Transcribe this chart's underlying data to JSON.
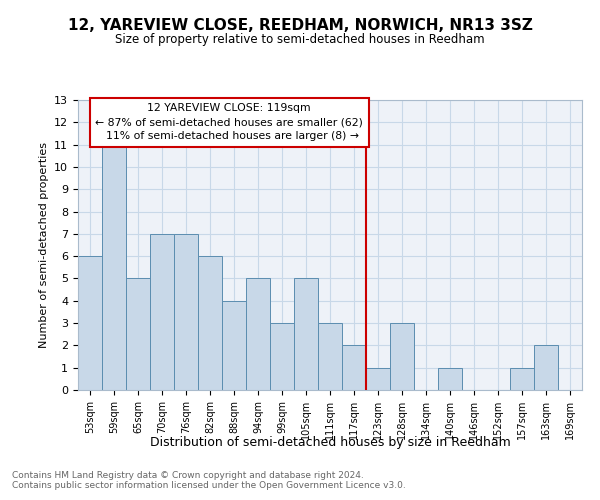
{
  "title": "12, YAREVIEW CLOSE, REEDHAM, NORWICH, NR13 3SZ",
  "subtitle": "Size of property relative to semi-detached houses in Reedham",
  "xlabel": "Distribution of semi-detached houses by size in Reedham",
  "ylabel": "Number of semi-detached properties",
  "categories": [
    "53sqm",
    "59sqm",
    "65sqm",
    "70sqm",
    "76sqm",
    "82sqm",
    "88sqm",
    "94sqm",
    "99sqm",
    "105sqm",
    "111sqm",
    "117sqm",
    "123sqm",
    "128sqm",
    "134sqm",
    "140sqm",
    "146sqm",
    "152sqm",
    "157sqm",
    "163sqm",
    "169sqm"
  ],
  "values": [
    6,
    11,
    5,
    7,
    7,
    6,
    4,
    5,
    3,
    5,
    3,
    2,
    1,
    3,
    0,
    1,
    0,
    0,
    1,
    2,
    0
  ],
  "bar_color": "#c8d8e8",
  "bar_edge_color": "#5b8db0",
  "subject_label": "12 YAREVIEW CLOSE: 119sqm",
  "pct_smaller": 87,
  "count_smaller": 62,
  "pct_larger": 11,
  "count_larger": 8,
  "vline_color": "#cc0000",
  "annotation_box_color": "#cc0000",
  "grid_color": "#c8d8e8",
  "background_color": "#eef2f8",
  "footer_text": "Contains HM Land Registry data © Crown copyright and database right 2024.\nContains public sector information licensed under the Open Government Licence v3.0.",
  "ylim": [
    0,
    13
  ],
  "yticks": [
    0,
    1,
    2,
    3,
    4,
    5,
    6,
    7,
    8,
    9,
    10,
    11,
    12,
    13
  ]
}
